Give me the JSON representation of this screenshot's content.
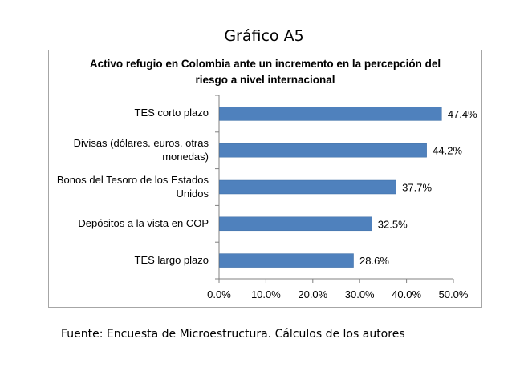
{
  "figure_title": "Gráfico A5",
  "source_note": "Fuente: Encuesta de Microestructura. Cálculos de los autores",
  "colors": {
    "bar": "#4f81bd",
    "bar_edge": "#3f6ea5",
    "axis": "#808080",
    "frame": "#a6a6a6"
  },
  "chart_data": {
    "type": "bar",
    "orientation": "horizontal",
    "title_lines": [
      "Activo refugio en Colombia ante un incremento en la percepción del",
      "riesgo a nivel internacional"
    ],
    "categories": [
      [
        "TES corto plazo"
      ],
      [
        "Divisas (dólares. euros. otras",
        "monedas)"
      ],
      [
        "Bonos del Tesoro de los Estados",
        "Unidos"
      ],
      [
        "Depósitos a la vista en COP"
      ],
      [
        "TES largo plazo"
      ]
    ],
    "values": [
      47.4,
      44.2,
      37.7,
      32.5,
      28.6
    ],
    "value_labels": [
      "47.4%",
      "44.2%",
      "37.7%",
      "32.5%",
      "28.6%"
    ],
    "xlim": [
      0,
      50
    ],
    "xticks": [
      "0.0%",
      "10.0%",
      "20.0%",
      "30.0%",
      "40.0%",
      "50.0%"
    ],
    "xlabel": "",
    "ylabel": "",
    "grid": false,
    "legend": "none"
  }
}
